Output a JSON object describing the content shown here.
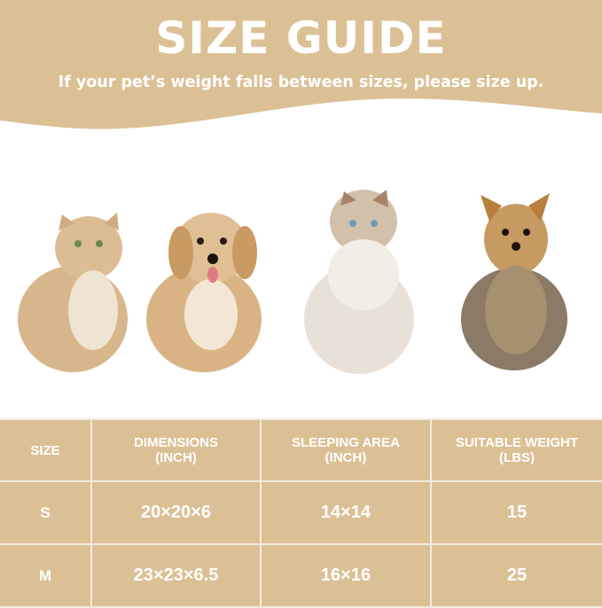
{
  "header": {
    "title": "SIZE GUIDE",
    "subtitle": "If your pet’s weight falls between sizes, please size up."
  },
  "colors": {
    "accent": "#dcc095",
    "text": "#ffffff"
  },
  "pets": [
    "cat-cream",
    "dog-poodle-mix",
    "cat-ragdoll",
    "dog-yorkshire-terrier"
  ],
  "table": {
    "headers": [
      [
        "SIZE",
        ""
      ],
      [
        "DIMENSIONS",
        "(INCH)"
      ],
      [
        "SLEEPING AREA",
        "(INCH)"
      ],
      [
        "SUITABLE WEIGHT",
        "(LBS)"
      ]
    ],
    "rows": [
      [
        "S",
        "20×20×6",
        "14×14",
        "15"
      ],
      [
        "M",
        "23×23×6.5",
        "16×16",
        "25"
      ]
    ]
  }
}
